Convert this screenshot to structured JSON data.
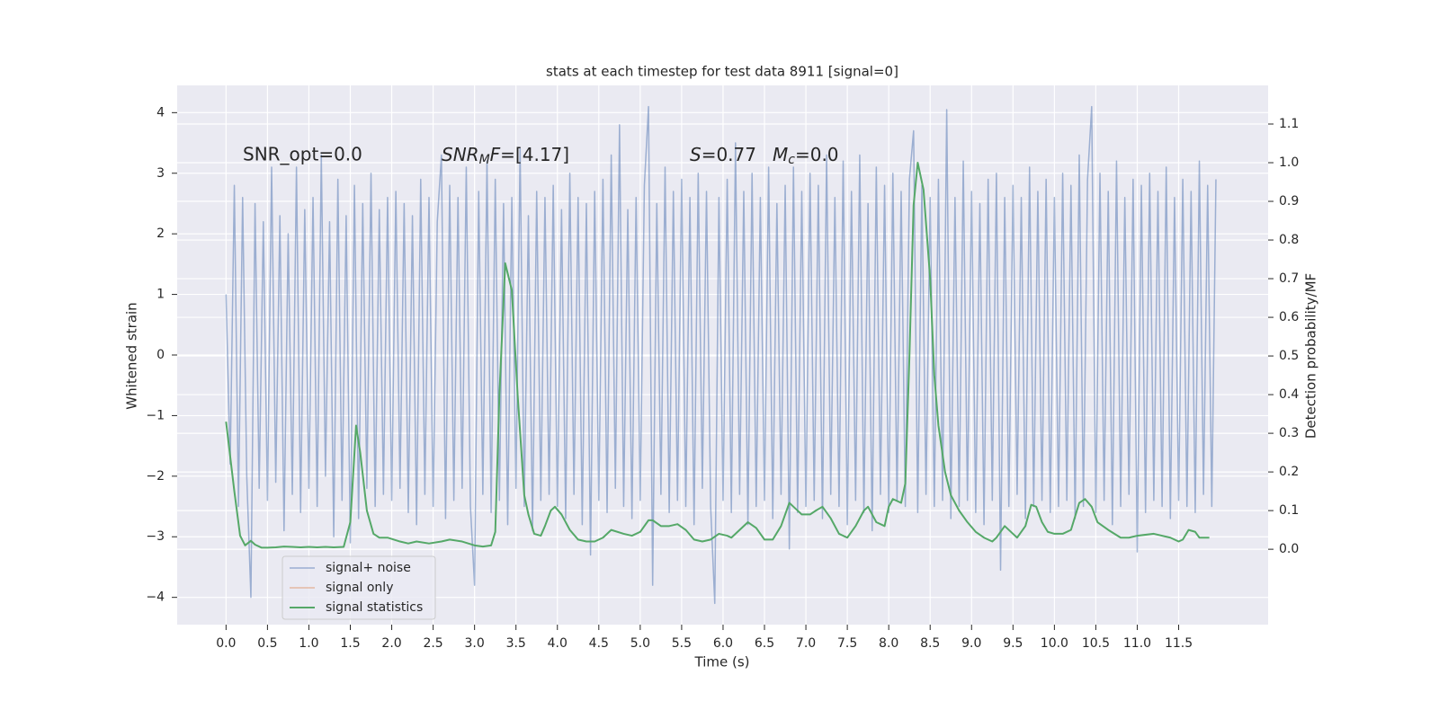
{
  "chart_data": {
    "type": "line",
    "title": "stats at each timestep for test data 8911 [signal=0]",
    "x_label": "Time (s)",
    "y_label": "Whitened strain",
    "y2_label": "Detection probability/MF",
    "annotations": [
      "SNR_opt=0.0",
      [
        "SNR",
        "M",
        "F",
        "=[4.17]"
      ],
      [
        "S",
        "=0.77"
      ],
      [
        "M",
        "c",
        "=0.0"
      ]
    ],
    "xlim": [
      -0.59,
      12.58
    ],
    "ylim": [
      -4.45,
      4.45
    ],
    "y2lim": [
      -0.195,
      1.2
    ],
    "xticks": [
      {
        "value": 0,
        "label": "0.0"
      },
      0.5,
      {
        "value": 1,
        "label": "1.0"
      },
      1.5,
      {
        "value": 2,
        "label": "2.0"
      },
      2.5,
      {
        "value": 3,
        "label": "3.0"
      },
      3.5,
      {
        "value": 4,
        "label": "4.0"
      },
      4.5,
      {
        "value": 5,
        "label": "5.0"
      },
      5.5,
      {
        "value": 6,
        "label": "6.0"
      },
      6.5,
      {
        "value": 7,
        "label": "7.0"
      },
      7.5,
      {
        "value": 8,
        "label": "8.0"
      },
      8.5,
      {
        "value": 9,
        "label": "9.0"
      },
      9.5,
      {
        "value": 10,
        "label": "10.0"
      },
      10.5,
      {
        "value": 11,
        "label": "11.0"
      },
      11.5
    ],
    "yticks": [
      {
        "value": -4,
        "label": "−4"
      },
      {
        "value": -3,
        "label": "−3"
      },
      {
        "value": -2,
        "label": "−2"
      },
      {
        "value": -1,
        "label": "−1"
      },
      0,
      1,
      2,
      3,
      4
    ],
    "y2ticks": [
      {
        "value": 0,
        "label": "0.0"
      },
      0.1,
      0.2,
      0.3,
      0.4,
      0.5,
      0.6,
      0.7,
      0.8,
      0.9,
      {
        "value": 1,
        "label": "1.0"
      },
      1.1
    ],
    "grid": true,
    "legend": "lower left",
    "series": [
      {
        "name": "signal+ noise",
        "color": "#4c72b0",
        "axis": "y",
        "x": [
          0,
          0.05,
          0.1,
          0.15,
          0.2,
          0.25,
          0.3,
          0.35,
          0.4,
          0.45,
          0.5,
          0.55,
          0.6,
          0.65,
          0.7,
          0.75,
          0.8,
          0.85,
          0.9,
          0.95,
          1,
          1.05,
          1.1,
          1.15,
          1.2,
          1.25,
          1.3,
          1.35,
          1.4,
          1.45,
          1.5,
          1.55,
          1.6,
          1.65,
          1.7,
          1.75,
          1.8,
          1.85,
          1.9,
          1.95,
          2,
          2.05,
          2.1,
          2.15,
          2.2,
          2.25,
          2.3,
          2.35,
          2.4,
          2.45,
          2.5,
          2.55,
          2.6,
          2.65,
          2.7,
          2.75,
          2.8,
          2.85,
          2.9,
          2.95,
          3,
          3.05,
          3.1,
          3.15,
          3.2,
          3.25,
          3.3,
          3.35,
          3.4,
          3.45,
          3.5,
          3.55,
          3.6,
          3.65,
          3.7,
          3.75,
          3.8,
          3.85,
          3.9,
          3.95,
          4,
          4.05,
          4.1,
          4.15,
          4.2,
          4.25,
          4.3,
          4.35,
          4.4,
          4.45,
          4.5,
          4.55,
          4.6,
          4.65,
          4.7,
          4.75,
          4.8,
          4.85,
          4.9,
          4.95,
          5,
          5.05,
          5.1,
          5.15,
          5.2,
          5.25,
          5.3,
          5.35,
          5.4,
          5.45,
          5.5,
          5.55,
          5.6,
          5.65,
          5.7,
          5.75,
          5.8,
          5.85,
          5.9,
          5.95,
          6,
          6.05,
          6.1,
          6.15,
          6.2,
          6.25,
          6.3,
          6.35,
          6.4,
          6.45,
          6.5,
          6.55,
          6.6,
          6.65,
          6.7,
          6.75,
          6.8,
          6.85,
          6.9,
          6.95,
          7,
          7.05,
          7.1,
          7.15,
          7.2,
          7.25,
          7.3,
          7.35,
          7.4,
          7.45,
          7.5,
          7.55,
          7.6,
          7.65,
          7.7,
          7.75,
          7.8,
          7.85,
          7.9,
          7.95,
          8,
          8.05,
          8.1,
          8.15,
          8.2,
          8.25,
          8.3,
          8.35,
          8.4,
          8.45,
          8.5,
          8.55,
          8.6,
          8.65,
          8.7,
          8.75,
          8.8,
          8.85,
          8.9,
          8.95,
          9,
          9.05,
          9.1,
          9.15,
          9.2,
          9.25,
          9.3,
          9.35,
          9.4,
          9.45,
          9.5,
          9.55,
          9.6,
          9.65,
          9.7,
          9.75,
          9.8,
          9.85,
          9.9,
          9.95,
          10,
          10.05,
          10.1,
          10.15,
          10.2,
          10.25,
          10.3,
          10.35,
          10.4,
          10.45,
          10.5,
          10.55,
          10.6,
          10.65,
          10.7,
          10.75,
          10.8,
          10.85,
          10.9,
          10.95,
          11,
          11.05,
          11.1,
          11.15,
          11.2,
          11.25,
          11.3,
          11.35,
          11.4,
          11.45,
          11.5,
          11.55,
          11.6,
          11.65,
          11.7,
          11.75,
          11.8,
          11.85,
          11.9,
          11.95
        ],
        "values": [
          1.0,
          -1.8,
          2.8,
          -2.5,
          2.6,
          -2.0,
          -4.0,
          2.5,
          -2.2,
          2.2,
          -2.4,
          3.1,
          -2.1,
          2.3,
          -2.9,
          2.0,
          -2.3,
          3.1,
          -2.6,
          2.4,
          -2.2,
          2.6,
          -2.5,
          3.3,
          -2.0,
          2.2,
          -3.0,
          2.9,
          -2.4,
          2.3,
          -3.1,
          2.8,
          -2.7,
          2.5,
          -2.2,
          3.0,
          -2.5,
          2.4,
          -2.3,
          2.6,
          -2.4,
          2.7,
          -2.2,
          2.5,
          -2.6,
          2.3,
          -2.8,
          2.9,
          -2.3,
          2.6,
          -2.5,
          2.2,
          3.3,
          -2.7,
          2.8,
          -2.4,
          2.6,
          -2.2,
          3.1,
          -2.5,
          -3.8,
          2.7,
          -2.3,
          3.2,
          -2.6,
          2.9,
          -2.4,
          2.5,
          -2.8,
          2.6,
          -2.2,
          3.4,
          -2.5,
          2.3,
          -2.9,
          2.7,
          -2.4,
          2.6,
          -2.3,
          2.8,
          -2.5,
          2.4,
          -2.7,
          3.0,
          -2.3,
          2.6,
          -2.8,
          2.5,
          -3.3,
          2.7,
          -2.4,
          2.9,
          -2.6,
          3.3,
          -2.2,
          3.8,
          -2.5,
          2.4,
          -2.7,
          2.6,
          -2.4,
          2.8,
          4.1,
          -3.8,
          2.5,
          -2.3,
          3.1,
          -2.6,
          2.7,
          -2.4,
          2.9,
          -2.5,
          2.6,
          -2.8,
          3.0,
          -2.2,
          2.7,
          -2.5,
          -4.1,
          2.6,
          -2.4,
          2.9,
          -2.6,
          3.5,
          -2.3,
          2.7,
          -2.8,
          3.0,
          -2.5,
          2.6,
          -2.4,
          3.1,
          -2.7,
          2.5,
          -2.3,
          2.8,
          -3.2,
          3.1,
          -2.6,
          2.7,
          -2.5,
          3.0,
          -2.4,
          2.8,
          -2.7,
          3.3,
          -2.3,
          2.6,
          -2.5,
          3.2,
          -2.8,
          2.7,
          -2.4,
          3.3,
          -2.6,
          2.5,
          -2.9,
          3.1,
          -2.3,
          2.8,
          -2.6,
          3.0,
          -2.4,
          2.7,
          -2.5,
          2.9,
          3.7,
          -2.6,
          2.8,
          -2.3,
          2.6,
          -2.5,
          2.9,
          -2.4,
          4.05,
          -2.7,
          2.6,
          -2.5,
          3.2,
          -2.4,
          2.7,
          -2.6,
          2.5,
          -2.8,
          2.9,
          -2.4,
          3.0,
          -3.55,
          2.6,
          -2.5,
          2.8,
          -2.3,
          2.6,
          -2.7,
          3.1,
          -2.5,
          2.7,
          -2.4,
          2.9,
          -2.6,
          2.6,
          -2.5,
          3.0,
          -2.4,
          2.8,
          -2.7,
          3.3,
          -2.5,
          2.9,
          4.1,
          -2.6,
          3.0,
          -2.4,
          2.7,
          -2.8,
          3.2,
          -2.5,
          2.6,
          -2.3,
          2.9,
          -3.25,
          2.8,
          -2.6,
          3.0,
          -2.4,
          2.7,
          -2.5,
          3.1,
          -2.7,
          2.6,
          -2.4,
          2.9,
          -2.5,
          2.7,
          -2.6,
          3.2,
          -2.3,
          2.8,
          -2.5,
          2.9
        ]
      },
      {
        "name": "signal only",
        "color": "#dd8452",
        "axis": "y",
        "x": [],
        "values": []
      },
      {
        "name": "signal statistics",
        "color": "#55a868",
        "axis": "y2",
        "x": [
          0,
          0.1,
          0.17,
          0.23,
          0.3,
          0.35,
          0.43,
          0.5,
          0.6,
          0.7,
          0.8,
          0.9,
          1.0,
          1.1,
          1.2,
          1.3,
          1.42,
          1.5,
          1.57,
          1.62,
          1.7,
          1.78,
          1.85,
          1.95,
          2.1,
          2.2,
          2.3,
          2.45,
          2.6,
          2.7,
          2.85,
          3.0,
          3.1,
          3.2,
          3.25,
          3.3,
          3.37,
          3.45,
          3.52,
          3.6,
          3.65,
          3.72,
          3.8,
          3.85,
          3.92,
          3.97,
          4.05,
          4.15,
          4.25,
          4.35,
          4.45,
          4.55,
          4.65,
          4.8,
          4.9,
          5.0,
          5.1,
          5.15,
          5.25,
          5.35,
          5.45,
          5.55,
          5.65,
          5.75,
          5.85,
          5.95,
          6.05,
          6.1,
          6.2,
          6.3,
          6.4,
          6.5,
          6.6,
          6.7,
          6.8,
          6.85,
          6.95,
          7.05,
          7.12,
          7.2,
          7.3,
          7.4,
          7.5,
          7.6,
          7.7,
          7.75,
          7.85,
          7.95,
          8.0,
          8.05,
          8.15,
          8.2,
          8.25,
          8.3,
          8.35,
          8.42,
          8.5,
          8.55,
          8.6,
          8.68,
          8.75,
          8.85,
          8.95,
          9.05,
          9.15,
          9.25,
          9.3,
          9.4,
          9.5,
          9.55,
          9.65,
          9.72,
          9.78,
          9.85,
          9.92,
          10.0,
          10.1,
          10.2,
          10.3,
          10.37,
          10.45,
          10.52,
          10.65,
          10.8,
          10.9,
          11.0,
          11.2,
          11.4,
          11.5,
          11.55,
          11.62,
          11.7,
          11.75,
          11.87
        ],
        "values": [
          0.33,
          0.15,
          0.035,
          0.01,
          0.022,
          0.012,
          0.004,
          0.004,
          0.005,
          0.007,
          0.006,
          0.005,
          0.006,
          0.005,
          0.006,
          0.005,
          0.006,
          0.07,
          0.32,
          0.25,
          0.1,
          0.04,
          0.03,
          0.03,
          0.02,
          0.015,
          0.02,
          0.015,
          0.02,
          0.025,
          0.02,
          0.01,
          0.007,
          0.01,
          0.045,
          0.4,
          0.74,
          0.67,
          0.4,
          0.14,
          0.09,
          0.04,
          0.035,
          0.06,
          0.1,
          0.11,
          0.09,
          0.05,
          0.025,
          0.02,
          0.02,
          0.03,
          0.05,
          0.04,
          0.035,
          0.045,
          0.075,
          0.075,
          0.06,
          0.06,
          0.065,
          0.05,
          0.025,
          0.02,
          0.025,
          0.04,
          0.035,
          0.03,
          0.05,
          0.07,
          0.055,
          0.025,
          0.025,
          0.06,
          0.12,
          0.11,
          0.09,
          0.09,
          0.1,
          0.11,
          0.08,
          0.04,
          0.03,
          0.06,
          0.1,
          0.11,
          0.07,
          0.06,
          0.11,
          0.13,
          0.12,
          0.17,
          0.5,
          0.89,
          1.0,
          0.93,
          0.7,
          0.45,
          0.32,
          0.2,
          0.14,
          0.1,
          0.07,
          0.045,
          0.03,
          0.02,
          0.03,
          0.06,
          0.04,
          0.03,
          0.06,
          0.115,
          0.11,
          0.07,
          0.045,
          0.04,
          0.04,
          0.05,
          0.12,
          0.13,
          0.11,
          0.07,
          0.05,
          0.03,
          0.03,
          0.035,
          0.04,
          0.03,
          0.02,
          0.025,
          0.05,
          0.045,
          0.03,
          0.03
        ]
      }
    ]
  }
}
